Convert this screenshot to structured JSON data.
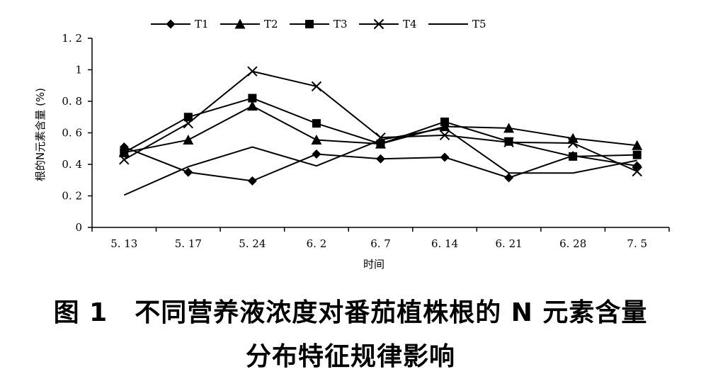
{
  "chart_data": {
    "type": "line",
    "categories": [
      "5. 13",
      "5. 17",
      "5. 24",
      "6. 2",
      "6. 7",
      "6. 14",
      "6. 21",
      "6. 28",
      "7. 5"
    ],
    "xlabel": "时间",
    "ylabel": "根的N元素含量 (%)",
    "ylim": [
      0,
      1.2
    ],
    "yticks": [
      "0",
      "0. 2",
      "0. 4",
      "0. 6",
      "0. 8",
      "1",
      "1. 2"
    ],
    "grid": false,
    "legend": "top",
    "series": [
      {
        "name": "T1",
        "marker": "diamond",
        "values": [
          0.51,
          0.35,
          0.295,
          0.465,
          0.435,
          0.445,
          0.315,
          0.455,
          0.39
        ]
      },
      {
        "name": "T2",
        "marker": "triangle",
        "values": [
          0.475,
          0.555,
          0.77,
          0.555,
          0.53,
          0.64,
          0.63,
          0.565,
          0.52
        ]
      },
      {
        "name": "T3",
        "marker": "square",
        "values": [
          0.475,
          0.7,
          0.82,
          0.66,
          0.53,
          0.67,
          0.545,
          0.45,
          0.46
        ]
      },
      {
        "name": "T4",
        "marker": "x",
        "values": [
          0.43,
          0.66,
          0.99,
          0.895,
          0.57,
          0.585,
          0.54,
          0.535,
          0.355
        ]
      },
      {
        "name": "T5",
        "marker": "none",
        "values": [
          0.205,
          0.385,
          0.51,
          0.39,
          0.555,
          0.63,
          0.345,
          0.345,
          0.425
        ]
      }
    ]
  },
  "caption": {
    "figure_number": "图 1",
    "line1": "不同营养液浓度对番茄植株根的 N 元素含量",
    "line2": "分布特征规律影响"
  }
}
